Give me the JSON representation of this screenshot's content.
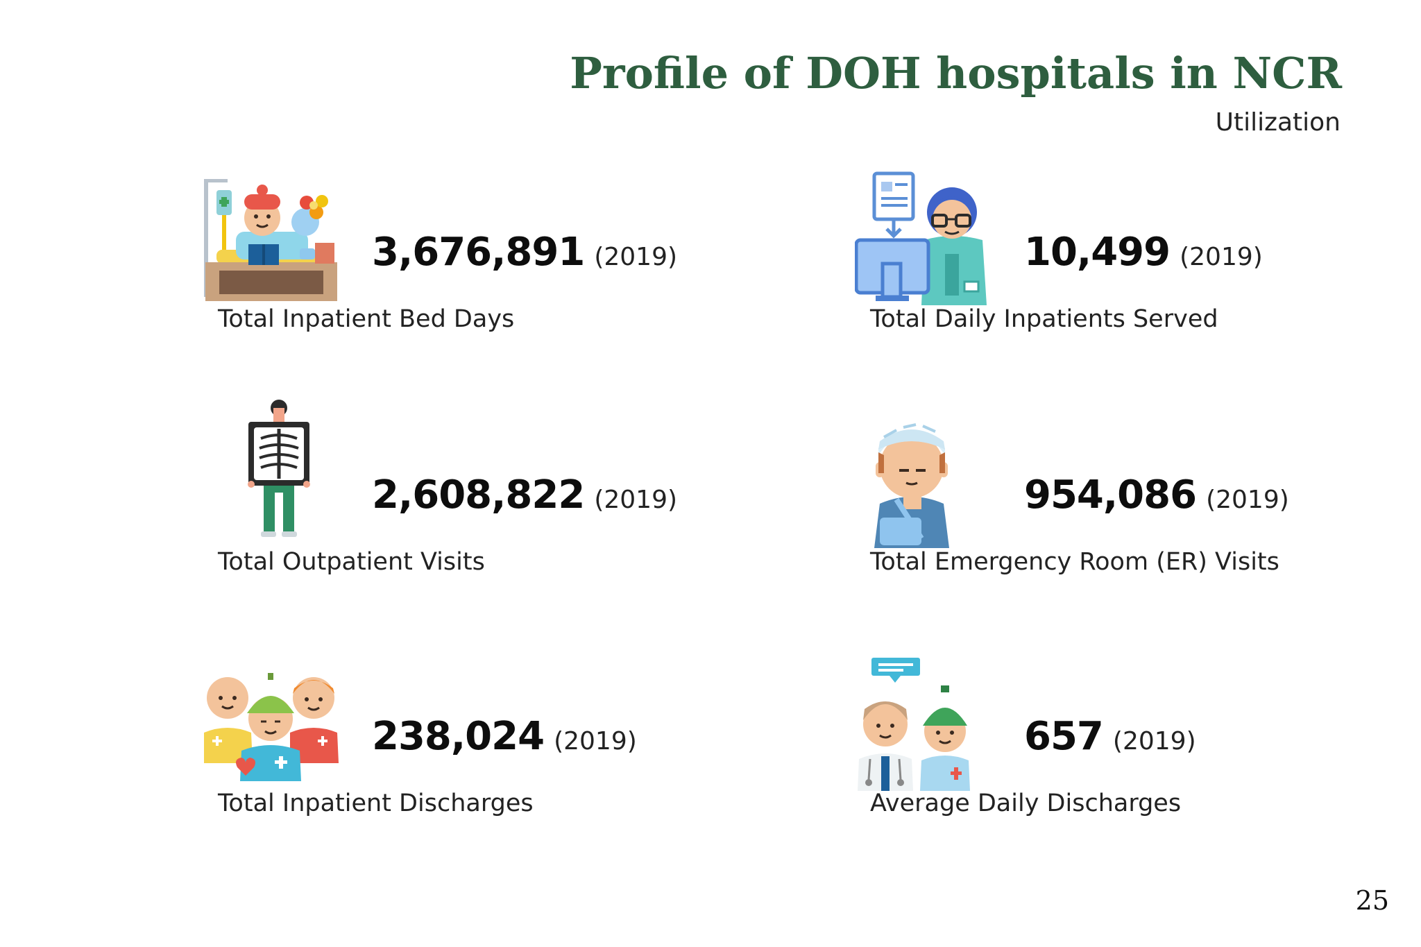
{
  "header": {
    "title": "Profile of DOH hospitals in NCR",
    "subtitle": "Utilization"
  },
  "stats": [
    {
      "value": "3,676,891",
      "year": "(2019)",
      "label": "Total Inpatient Bed Days",
      "icon": "patient-in-bed-icon"
    },
    {
      "value": "10,499",
      "year": "(2019)",
      "label": "Total Daily Inpatients Served",
      "icon": "nurse-at-computer-icon"
    },
    {
      "value": "2,608,822",
      "year": "(2019)",
      "label": "Total Outpatient Visits",
      "icon": "x-ray-patient-icon"
    },
    {
      "value": "954,086",
      "year": "(2019)",
      "label": "Total Emergency Room (ER) Visits",
      "icon": "injured-patient-icon"
    },
    {
      "value": "238,024",
      "year": "(2019)",
      "label": "Total Inpatient Discharges",
      "icon": "patient-group-icon"
    },
    {
      "value": "657",
      "year": "(2019)",
      "label": "Average Daily Discharges",
      "icon": "doctor-and-patient-icon"
    }
  ],
  "page_number": "25",
  "colors": {
    "title": "#2e5e3f",
    "value": "#0d0d0d",
    "text": "#222222"
  }
}
